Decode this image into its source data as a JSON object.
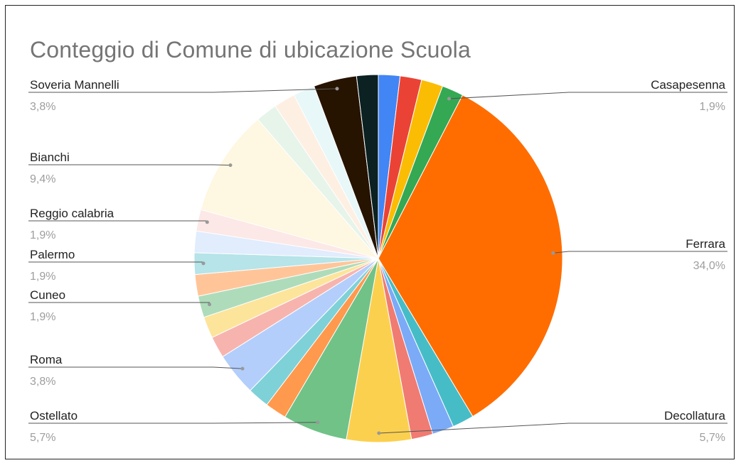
{
  "chart_data": {
    "type": "pie",
    "title": "Conteggio di Comune di ubicazione Scuola",
    "slices": [
      {
        "value": 1.9,
        "color": "#4285f4"
      },
      {
        "value": 1.9,
        "color": "#ea4335"
      },
      {
        "value": 1.9,
        "color": "#fbbc04"
      },
      {
        "name": "Casapesenna",
        "value": 1.9,
        "display": "1,9%",
        "color": "#34a853"
      },
      {
        "name": "Ferrara",
        "value": 34.0,
        "display": "34,0%",
        "color": "#ff6d01"
      },
      {
        "value": 1.9,
        "color": "#46bdc6"
      },
      {
        "value": 1.9,
        "color": "#7baaf7"
      },
      {
        "value": 1.9,
        "color": "#f07b72"
      },
      {
        "name": "Decollatura",
        "value": 5.7,
        "display": "5,7%",
        "color": "#fcd04f"
      },
      {
        "name": "Ostellato",
        "value": 5.7,
        "display": "5,7%",
        "color": "#71c287"
      },
      {
        "value": 1.9,
        "color": "#ff994d"
      },
      {
        "value": 1.9,
        "color": "#7ed1d7"
      },
      {
        "name": "Roma",
        "value": 3.8,
        "display": "3,8%",
        "color": "#b3cefb"
      },
      {
        "value": 1.9,
        "color": "#f7b4ae"
      },
      {
        "value": 1.9,
        "color": "#fde49b"
      },
      {
        "name": "Cuneo",
        "value": 1.9,
        "display": "1,9%",
        "color": "#aedcba"
      },
      {
        "value": 1.9,
        "color": "#ffc599"
      },
      {
        "name": "Palermo",
        "value": 1.9,
        "display": "1,9%",
        "color": "#b6e4e8"
      },
      {
        "value": 1.9,
        "color": "#e1ecfd"
      },
      {
        "name": "Reggio calabria",
        "value": 1.9,
        "display": "1,9%",
        "color": "#fce8e6"
      },
      {
        "name": "Bianchi",
        "value": 9.4,
        "display": "9,4%",
        "color": "#fef7e1"
      },
      {
        "value": 1.9,
        "color": "#e6f4ea"
      },
      {
        "value": 1.9,
        "color": "#feefe3"
      },
      {
        "value": 1.9,
        "color": "#e8f7f8"
      },
      {
        "name": "Soveria Mannelli",
        "value": 3.8,
        "display": "3,8%",
        "color": "#261300"
      },
      {
        "value": 1.9,
        "color": "#0b2122"
      }
    ]
  }
}
